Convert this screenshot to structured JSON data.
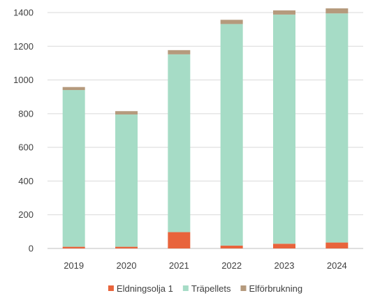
{
  "chart_data": {
    "type": "bar",
    "stacked": true,
    "categories": [
      "2019",
      "2020",
      "2021",
      "2022",
      "2023",
      "2024"
    ],
    "series": [
      {
        "name": "Eldningsolja 1",
        "color": "#e8643c",
        "values": [
          10,
          10,
          97,
          17,
          28,
          35
        ]
      },
      {
        "name": "Träpellets",
        "color": "#a6dcc6",
        "values": [
          930,
          785,
          1055,
          1315,
          1360,
          1360
        ]
      },
      {
        "name": "Elförbrukning",
        "color": "#b59a7d",
        "values": [
          18,
          20,
          25,
          25,
          25,
          30
        ]
      }
    ],
    "y_ticks": [
      "0",
      "200",
      "400",
      "600",
      "800",
      "1000",
      "1200",
      "1400"
    ],
    "ylim": [
      0,
      1400
    ],
    "grid": true,
    "legend_position": "bottom",
    "title": "",
    "xlabel": "",
    "ylabel": ""
  }
}
